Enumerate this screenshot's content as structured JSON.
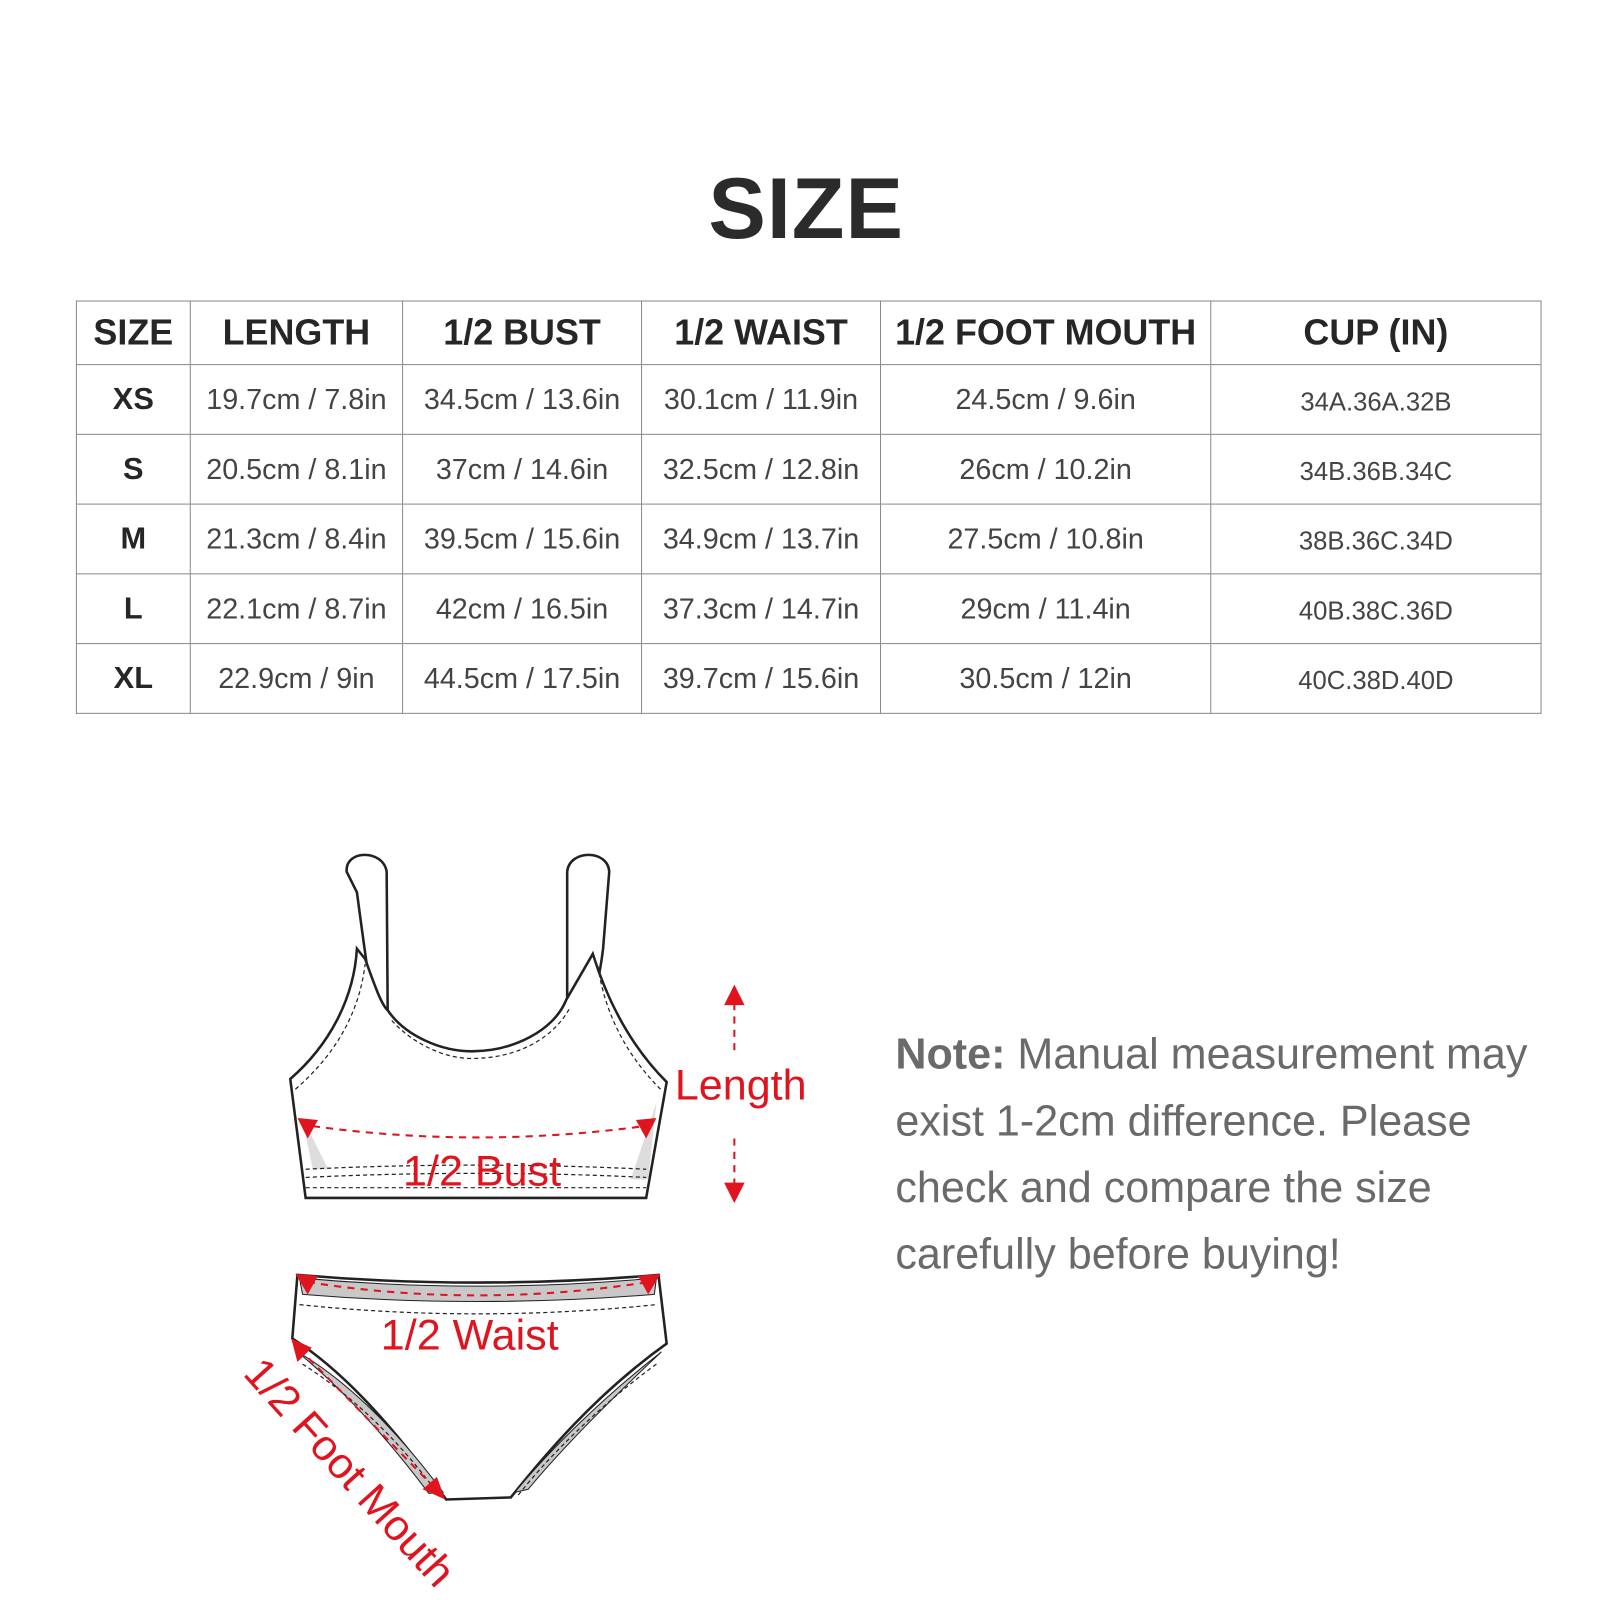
{
  "title": "SIZE",
  "table": {
    "headers": [
      "SIZE",
      "LENGTH",
      "1/2 BUST",
      "1/2 WAIST",
      "1/2 FOOT MOUTH",
      "CUP (IN)"
    ],
    "rows": [
      [
        "XS",
        "19.7cm / 7.8in",
        "34.5cm / 13.6in",
        "30.1cm / 11.9in",
        "24.5cm / 9.6in",
        "34A.36A.32B"
      ],
      [
        "S",
        "20.5cm / 8.1in",
        "37cm / 14.6in",
        "32.5cm / 12.8in",
        "26cm / 10.2in",
        "34B.36B.34C"
      ],
      [
        "M",
        "21.3cm / 8.4in",
        "39.5cm / 15.6in",
        "34.9cm / 13.7in",
        "27.5cm / 10.8in",
        "38B.36C.34D"
      ],
      [
        "L",
        "22.1cm / 8.7in",
        "42cm / 16.5in",
        "37.3cm / 14.7in",
        "29cm / 11.4in",
        "40B.38C.36D"
      ],
      [
        "XL",
        "22.9cm / 9in",
        "44.5cm / 17.5in",
        "39.7cm / 15.6in",
        "30.5cm / 12in",
        "40C.38D.40D"
      ]
    ]
  },
  "diagram": {
    "labels": {
      "length": "Length",
      "bust": "1/2 Bust",
      "waist": "1/2 Waist",
      "foot_mouth": "1/2 Foot Mouth"
    },
    "accent_color": "#e0141e"
  },
  "note": {
    "label": "Note:",
    "text": " Manual measurement may exist 1-2cm difference. Please check and compare the size carefully before buying!"
  }
}
